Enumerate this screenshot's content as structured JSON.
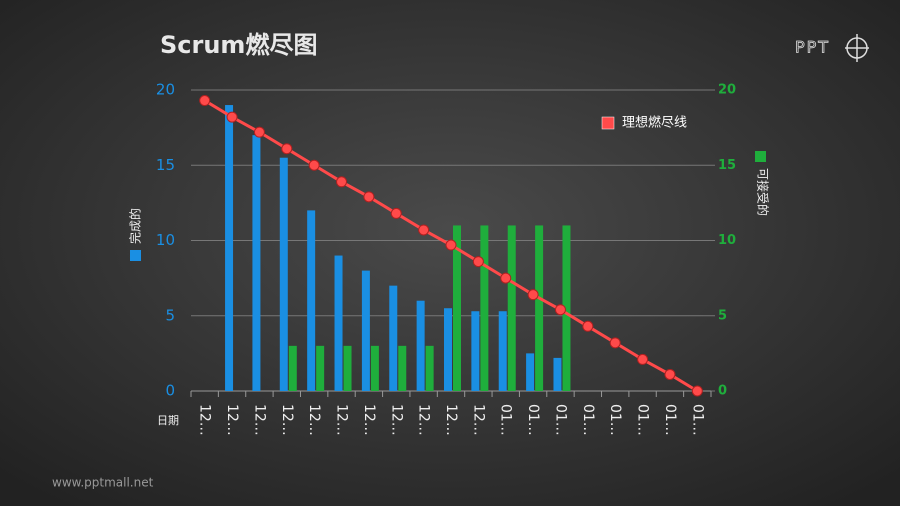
{
  "chart_data": {
    "type": "bar",
    "title": "Scrum燃尽图",
    "logo": "PPT",
    "footer": "www.pptmall.net",
    "x_label": "日期",
    "categories": [
      "12…",
      "12…",
      "12…",
      "12…",
      "12…",
      "12…",
      "12…",
      "12…",
      "12…",
      "12…",
      "12…",
      "01…",
      "01…",
      "01…",
      "01…",
      "01…",
      "01…",
      "01…",
      "01…"
    ],
    "series": [
      {
        "name": "完成的",
        "type": "bar",
        "color": "#1a8fe3",
        "axis": "y",
        "values": [
          null,
          19,
          17,
          15.5,
          12,
          9,
          8,
          7,
          6,
          5.5,
          5.3,
          5.3,
          2.5,
          2.2,
          null,
          null,
          null,
          null,
          null
        ]
      },
      {
        "name": "可接受的",
        "type": "bar",
        "color": "#1fae3c",
        "axis": "y2",
        "values": [
          null,
          null,
          null,
          3,
          3,
          3,
          3,
          3,
          3,
          11,
          11,
          11,
          11,
          11,
          null,
          null,
          null,
          null,
          null
        ]
      },
      {
        "name": "理想燃尽线",
        "type": "line",
        "color": "#ff4a4a",
        "axis": "y",
        "values": [
          19.3,
          18.2,
          17.2,
          16.1,
          15,
          13.9,
          12.9,
          11.8,
          10.7,
          9.7,
          8.6,
          7.5,
          6.4,
          5.4,
          4.3,
          3.2,
          2.1,
          1.1,
          0
        ]
      }
    ],
    "ylim": [
      0,
      20
    ],
    "yticks": [
      0,
      5,
      10,
      15,
      20
    ],
    "y2lim": [
      0,
      20
    ],
    "y2ticks": [
      0,
      5,
      10,
      15,
      20
    ],
    "grid": true
  }
}
